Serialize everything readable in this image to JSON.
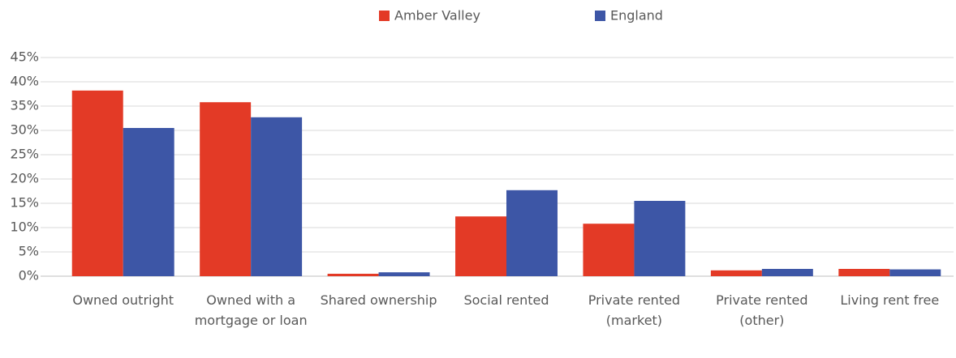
{
  "chart_data": {
    "type": "bar",
    "categories": [
      "Owned outright",
      "Owned with a mortgage or loan",
      "Shared ownership",
      "Social rented",
      "Private rented (market)",
      "Private rented (other)",
      "Living rent free"
    ],
    "series": [
      {
        "name": "Amber Valley",
        "color": "#e33a26",
        "values": [
          38.2,
          35.8,
          0.5,
          12.3,
          10.8,
          1.2,
          1.5
        ]
      },
      {
        "name": "England",
        "color": "#3d56a6",
        "values": [
          30.5,
          32.7,
          0.8,
          17.7,
          15.5,
          1.5,
          1.4
        ]
      }
    ],
    "ylim": [
      0,
      45
    ],
    "yticks": [
      {
        "value": 0,
        "label": "0%"
      },
      {
        "value": 5,
        "label": "5%"
      },
      {
        "value": 10,
        "label": "10%"
      },
      {
        "value": 15,
        "label": "15%"
      },
      {
        "value": 20,
        "label": "20%"
      },
      {
        "value": 25,
        "label": "25%"
      },
      {
        "value": 30,
        "label": "30%"
      },
      {
        "value": 35,
        "label": "35%"
      },
      {
        "value": 40,
        "label": "40%"
      },
      {
        "value": 45,
        "label": "45%"
      }
    ],
    "grid": true,
    "legend": "top"
  }
}
